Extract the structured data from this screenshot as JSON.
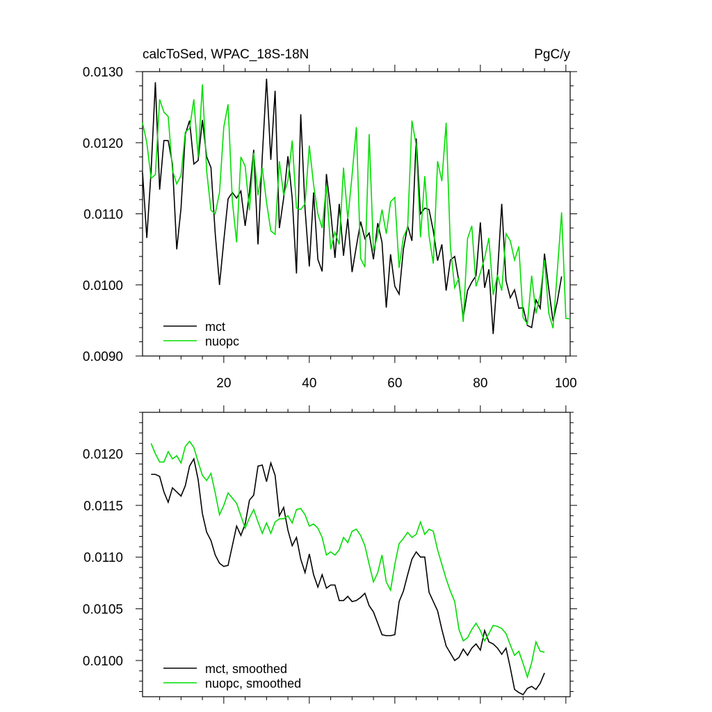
{
  "chart_data": [
    {
      "type": "line",
      "title": "calcToSed, WPAC_18S-18N",
      "units": "PgC/y",
      "xlim": [
        1,
        101
      ],
      "ylim": [
        0.009,
        0.013
      ],
      "x_ticks": [
        20,
        40,
        60,
        80,
        100
      ],
      "x_tick_labels": [
        "20",
        "40",
        "60",
        "80",
        "100"
      ],
      "y_ticks": [
        0.009,
        0.01,
        0.011,
        0.012,
        0.013
      ],
      "y_tick_labels": [
        "0.0090",
        "0.0100",
        "0.0110",
        "0.0120",
        "0.0130"
      ],
      "legend_position": "bottom-left",
      "series": [
        {
          "name": "mct",
          "color": "#000000",
          "x_start": 1,
          "values": [
            0.01158,
            0.01066,
            0.0116,
            0.01285,
            0.01134,
            0.01203,
            0.01203,
            0.0117,
            0.0105,
            0.01108,
            0.01212,
            0.01231,
            0.0117,
            0.01175,
            0.01232,
            0.0118,
            0.01165,
            0.01072,
            0.01,
            0.01062,
            0.01121,
            0.0113,
            0.01122,
            0.01132,
            0.01083,
            0.0113,
            0.0119,
            0.01057,
            0.0118,
            0.0129,
            0.01176,
            0.01273,
            0.0108,
            0.01122,
            0.01181,
            0.01122,
            0.01016,
            0.0124,
            0.01107,
            0.01026,
            0.0113,
            0.01036,
            0.01019,
            0.01156,
            0.01104,
            0.01038,
            0.01114,
            0.01041,
            0.01094,
            0.01018,
            0.01054,
            0.01089,
            0.01065,
            0.01073,
            0.01036,
            0.01087,
            0.0106,
            0.00968,
            0.01043,
            0.00998,
            0.00987,
            0.0105,
            0.01083,
            0.01062,
            0.01206,
            0.011,
            0.01108,
            0.01106,
            0.01076,
            0.01034,
            0.01057,
            0.00992,
            0.01035,
            0.0104,
            0.01004,
            0.00954,
            0.00992,
            0.01004,
            0.01013,
            0.01088,
            0.00996,
            0.01022,
            0.00931,
            0.01015,
            0.01114,
            0.01006,
            0.00982,
            0.00993,
            0.00967,
            0.00968,
            0.00943,
            0.0094,
            0.00979,
            0.00967,
            0.01044,
            0.00994,
            0.00949,
            0.00977,
            0.01012
          ]
        },
        {
          "name": "nuopc",
          "color": "#00dd00",
          "x_start": 1,
          "values": [
            0.01228,
            0.012,
            0.0115,
            0.01155,
            0.01261,
            0.01243,
            0.01237,
            0.01161,
            0.01142,
            0.01154,
            0.01215,
            0.0122,
            0.01261,
            0.0118,
            0.01282,
            0.0116,
            0.01105,
            0.011,
            0.0113,
            0.01222,
            0.01254,
            0.01118,
            0.0106,
            0.0118,
            0.01167,
            0.01105,
            0.01186,
            0.01126,
            0.01165,
            0.01116,
            0.01076,
            0.01071,
            0.01174,
            0.01126,
            0.01147,
            0.01203,
            0.01108,
            0.01106,
            0.01114,
            0.01196,
            0.01141,
            0.011,
            0.0108,
            0.0114,
            0.0105,
            0.01074,
            0.01057,
            0.01165,
            0.01093,
            0.01154,
            0.01222,
            0.01037,
            0.01025,
            0.01212,
            0.01048,
            0.0107,
            0.01106,
            0.01072,
            0.01117,
            0.01123,
            0.01024,
            0.01067,
            0.01081,
            0.01231,
            0.01196,
            0.01067,
            0.01153,
            0.01069,
            0.0103,
            0.01174,
            0.01146,
            0.01228,
            0.01053,
            0.00996,
            0.0101,
            0.00948,
            0.01065,
            0.01083,
            0.00998,
            0.01017,
            0.01038,
            0.01066,
            0.00986,
            0.01014,
            0.00992,
            0.01072,
            0.01062,
            0.01035,
            0.01054,
            0.00954,
            0.00945,
            0.01013,
            0.0096,
            0.00986,
            0.01035,
            0.0096,
            0.00939,
            0.0102,
            0.01102,
            0.00953,
            0.00952
          ]
        }
      ]
    },
    {
      "type": "line",
      "xlim": [
        1,
        101
      ],
      "ylim": [
        0.00965,
        0.0124
      ],
      "x_ticks": [
        20,
        40,
        60,
        80,
        100
      ],
      "y_ticks": [
        0.01,
        0.0105,
        0.011,
        0.0115,
        0.012
      ],
      "y_tick_labels": [
        "0.0100",
        "0.0105",
        "0.0110",
        "0.0115",
        "0.0120"
      ],
      "legend_position": "bottom-left",
      "series": [
        {
          "name": "mct, smoothed",
          "color": "#000000",
          "x_start": 3,
          "values": [
            0.0118,
            0.0118,
            0.01178,
            0.01163,
            0.01153,
            0.01167,
            0.01163,
            0.01159,
            0.01169,
            0.01188,
            0.01195,
            0.01175,
            0.01142,
            0.01124,
            0.01116,
            0.01102,
            0.01094,
            0.01091,
            0.01092,
            0.01111,
            0.0113,
            0.01121,
            0.01132,
            0.01155,
            0.0116,
            0.01188,
            0.01189,
            0.01173,
            0.01191,
            0.01179,
            0.0114,
            0.01148,
            0.01126,
            0.01111,
            0.01119,
            0.01098,
            0.01085,
            0.01103,
            0.01083,
            0.01071,
            0.01083,
            0.0107,
            0.01073,
            0.01073,
            0.01058,
            0.01058,
            0.01062,
            0.01057,
            0.01058,
            0.01061,
            0.01065,
            0.01053,
            0.01047,
            0.01036,
            0.01025,
            0.01024,
            0.01024,
            0.01025,
            0.01057,
            0.01067,
            0.01083,
            0.01098,
            0.01105,
            0.011,
            0.011,
            0.01066,
            0.01057,
            0.01048,
            0.0103,
            0.01014,
            0.01007,
            0.01,
            0.01003,
            0.01011,
            0.01005,
            0.01012,
            0.01016,
            0.0101,
            0.01029,
            0.01018,
            0.01016,
            0.01012,
            0.01006,
            0.01012,
            0.00993,
            0.00972,
            0.00969,
            0.00967,
            0.00973,
            0.00975,
            0.00972,
            0.00978,
            0.00988
          ]
        },
        {
          "name": "nuopc, smoothed",
          "color": "#00dd00",
          "x_start": 3,
          "values": [
            0.0121,
            0.012,
            0.01192,
            0.01192,
            0.01202,
            0.01195,
            0.01198,
            0.01191,
            0.01207,
            0.01212,
            0.01206,
            0.01192,
            0.01179,
            0.01174,
            0.01181,
            0.01162,
            0.01141,
            0.0115,
            0.01162,
            0.01157,
            0.01152,
            0.0114,
            0.01128,
            0.01138,
            0.01146,
            0.01134,
            0.01123,
            0.01133,
            0.01123,
            0.01134,
            0.01137,
            0.01137,
            0.0114,
            0.01133,
            0.01146,
            0.01147,
            0.01141,
            0.0113,
            0.01132,
            0.01128,
            0.01119,
            0.01102,
            0.01105,
            0.01102,
            0.01107,
            0.01119,
            0.01114,
            0.01125,
            0.01127,
            0.01121,
            0.01111,
            0.01093,
            0.01076,
            0.01085,
            0.01102,
            0.01076,
            0.01068,
            0.01093,
            0.01113,
            0.01118,
            0.01124,
            0.01119,
            0.01122,
            0.01134,
            0.01122,
            0.01127,
            0.01125,
            0.01107,
            0.01093,
            0.01079,
            0.01067,
            0.01057,
            0.0103,
            0.01019,
            0.01022,
            0.0103,
            0.01036,
            0.01029,
            0.01019,
            0.01026,
            0.01034,
            0.01033,
            0.01031,
            0.01026,
            0.01015,
            0.01005,
            0.01009,
            0.00997,
            0.00984,
            0.00998,
            0.01018,
            0.01009,
            0.01008
          ]
        }
      ]
    }
  ]
}
